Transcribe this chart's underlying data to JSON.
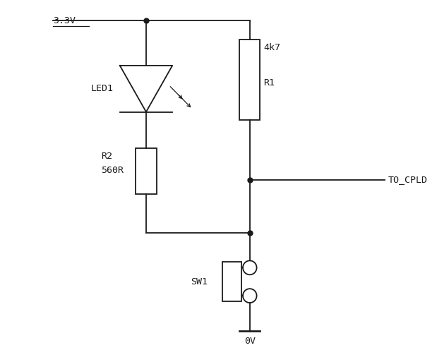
{
  "bg_color": "#ffffff",
  "line_color": "#1a1a1a",
  "line_width": 1.3,
  "font_family": "monospace",
  "font_size": 9.5,
  "labels": {
    "vcc": "3.3V",
    "gnd": "0V",
    "led": "LED1",
    "r1_val": "4k7",
    "r1_name": "R1",
    "r2_val": "560R",
    "r2_name": "R2",
    "sw": "SW1",
    "cpld": "TO_CPLD"
  }
}
